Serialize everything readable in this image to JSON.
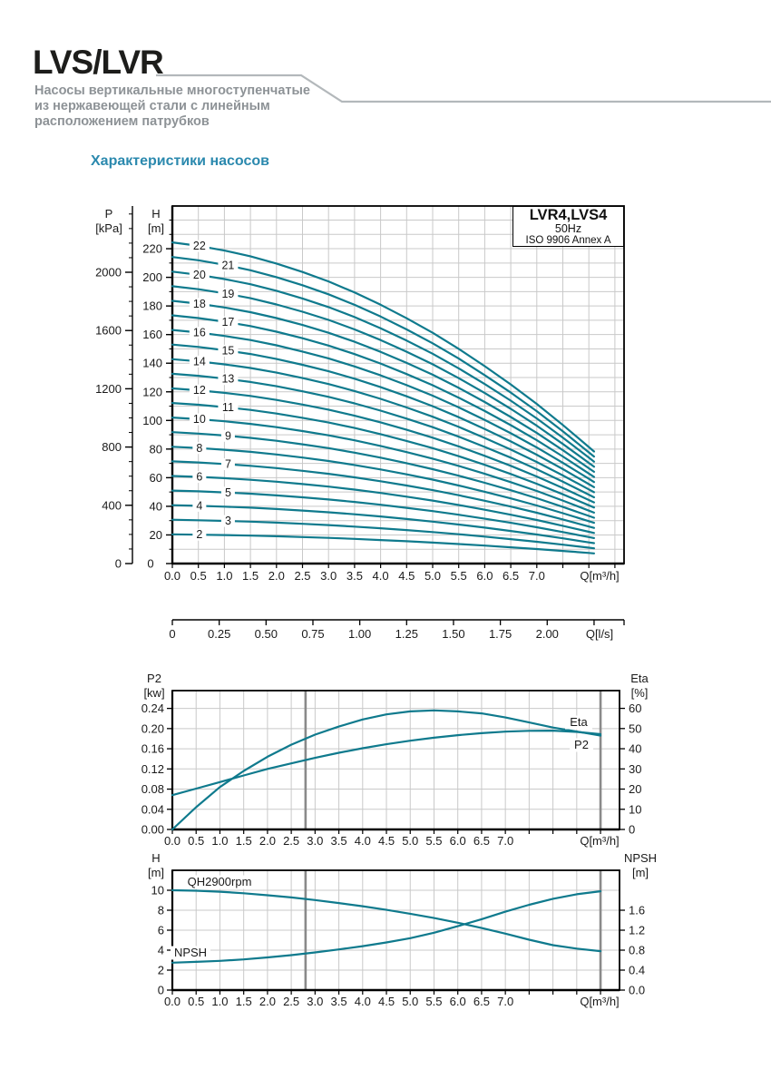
{
  "header": {
    "logo": "LVS/LVR",
    "subtitle_lines": [
      "Насосы вертикальные многоступенчатые",
      "из нержавеющей стали с линейным",
      "расположением патрубков"
    ],
    "section_title": "Характеристики насосов"
  },
  "title_box": {
    "model": "LVR4,LVS4",
    "frequency": "50Hz",
    "standard": "ISO 9906 Annex A"
  },
  "colors": {
    "curve": "#0f7a8d",
    "heading": "#2b89ae",
    "subtitle_gray": "#8d9296",
    "logo_black": "#1d1d1b",
    "grid": "#c9c9c9",
    "grid_dark": "#8a8a8a",
    "axis": "#000000",
    "header_line": "#b3b8bb"
  },
  "chart_data": [
    {
      "id": "qh_multistage",
      "type": "line",
      "title": "LVR4,LVS4",
      "subtitle": "50Hz",
      "standard": "ISO 9906 Annex A",
      "x_axis": {
        "label": "Q[m³/h]",
        "tick_labels": [
          "0.0",
          "0.5",
          "1.0",
          "1.5",
          "2.0",
          "2.5",
          "3.0",
          "3.5",
          "4.0",
          "4.5",
          "5.0",
          "5.5",
          "6.0",
          "6.5",
          "7.0"
        ],
        "tick_step": 0.5,
        "max": 8.65
      },
      "x_axis_secondary": {
        "label": "Q[l/s]",
        "tick_labels": [
          "0",
          "0.25",
          "0.50",
          "0.75",
          "1.00",
          "1.25",
          "1.50",
          "1.75",
          "2.00"
        ],
        "tick_step": 0.25,
        "m3h_per_unit": 3.6
      },
      "y_axis_h": {
        "label_lines": [
          "H",
          "[m]"
        ],
        "ticks": [
          0,
          20,
          40,
          60,
          80,
          100,
          120,
          140,
          160,
          180,
          200,
          220
        ],
        "minor_step": 10,
        "max": 250
      },
      "y_axis_p": {
        "label_lines": [
          "P",
          "[kPa]"
        ],
        "ticks": [
          0,
          400,
          800,
          1200,
          1600,
          2000
        ],
        "minor_step": 100,
        "max": 2400,
        "kpa_per_m": 9.81
      },
      "stages": [
        2,
        3,
        4,
        5,
        6,
        7,
        8,
        9,
        10,
        11,
        12,
        13,
        14,
        15,
        16,
        17,
        18,
        19,
        20,
        21,
        22
      ],
      "per_stage_head": {
        "q": [
          0,
          0.5,
          1,
          1.5,
          2,
          2.5,
          3,
          3.5,
          4,
          4.5,
          5,
          5.5,
          6,
          6.5,
          7,
          7.5,
          8,
          8.1
        ],
        "h_m": [
          10.2,
          10.09,
          9.94,
          9.76,
          9.53,
          9.26,
          8.96,
          8.61,
          8.22,
          7.79,
          7.33,
          6.82,
          6.27,
          5.69,
          5.07,
          4.4,
          3.7,
          3.56
        ]
      },
      "stage_label_q": {
        "even": 0.52,
        "odd": 1.07
      }
    },
    {
      "id": "power_efficiency",
      "type": "line",
      "x_axis": {
        "label": "Q[m³/h]",
        "tick_labels": [
          "0.0",
          "0.5",
          "1.0",
          "1.5",
          "2.0",
          "2.5",
          "3.0",
          "3.5",
          "4.0",
          "4.5",
          "5.0",
          "5.5",
          "6.0",
          "6.5",
          "7.0"
        ],
        "tick_step": 0.5,
        "max": 9.4
      },
      "y_axis_left": {
        "label_lines": [
          "P2",
          "[kw]"
        ],
        "ticks": [
          "0.00",
          "0.04",
          "0.08",
          "0.12",
          "0.16",
          "0.20",
          "0.24"
        ],
        "max": 0.2753
      },
      "y_axis_right": {
        "label_lines": [
          "Eta",
          "[%]"
        ],
        "ticks": [
          "0",
          "10",
          "20",
          "30",
          "40",
          "50",
          "60"
        ],
        "max": 68.8
      },
      "reference_lines_q": [
        2.8,
        9.0
      ],
      "series": [
        {
          "name": "Eta",
          "axis": "right",
          "q": [
            0,
            0.5,
            1,
            1.5,
            2,
            2.5,
            3,
            3.5,
            4,
            4.5,
            5,
            5.5,
            6,
            6.5,
            7,
            7.5,
            8,
            8.5,
            9.0
          ],
          "values": [
            0,
            11,
            21,
            29,
            36,
            42,
            47,
            51,
            54.5,
            57,
            58.5,
            59,
            58.5,
            57.5,
            55.5,
            53,
            50.5,
            48.5,
            46.5
          ]
        },
        {
          "name": "P2",
          "axis": "left",
          "q": [
            0,
            0.5,
            1,
            1.5,
            2,
            2.5,
            3,
            3.5,
            4,
            4.5,
            5,
            5.5,
            6,
            6.5,
            7,
            7.5,
            8,
            8.5,
            9.0
          ],
          "values": [
            0.068,
            0.081,
            0.094,
            0.107,
            0.12,
            0.131,
            0.142,
            0.152,
            0.161,
            0.169,
            0.176,
            0.182,
            0.187,
            0.191,
            0.194,
            0.1955,
            0.196,
            0.1935,
            0.189
          ]
        }
      ]
    },
    {
      "id": "qh_npsh",
      "type": "line",
      "x_axis": {
        "label": "Q[m³/h]",
        "tick_labels": [
          "0.0",
          "0.5",
          "1.0",
          "1.5",
          "2.0",
          "2.5",
          "3.0",
          "3.5",
          "4.0",
          "4.5",
          "5.0",
          "5.5",
          "6.0",
          "6.5",
          "7.0"
        ],
        "tick_step": 0.5,
        "max": 9.4
      },
      "y_axis_left": {
        "label_lines": [
          "H",
          "[m]"
        ],
        "ticks": [
          "0",
          "2",
          "4",
          "6",
          "8",
          "10"
        ],
        "max": 12
      },
      "y_axis_right": {
        "label_lines": [
          "NPSH",
          "[m]"
        ],
        "ticks": [
          "0.0",
          "0.4",
          "0.8",
          "1.2",
          "1.6"
        ],
        "max": 2.4
      },
      "reference_lines_q": [
        2.8,
        9.0
      ],
      "series": [
        {
          "name": "QH2900rpm",
          "axis": "left",
          "q": [
            0,
            0.5,
            1,
            1.5,
            2,
            2.5,
            3,
            3.5,
            4,
            4.5,
            5,
            5.5,
            6,
            6.5,
            7,
            7.5,
            8,
            8.5,
            9.0
          ],
          "values": [
            10.0,
            9.95,
            9.85,
            9.7,
            9.5,
            9.28,
            9.02,
            8.72,
            8.4,
            8.04,
            7.65,
            7.22,
            6.75,
            6.22,
            5.65,
            5.05,
            4.5,
            4.15,
            3.9
          ]
        },
        {
          "name": "NPSH",
          "axis": "right",
          "q": [
            0,
            0.5,
            1,
            1.5,
            2,
            2.5,
            3,
            3.5,
            4,
            4.5,
            5,
            5.5,
            6,
            6.5,
            7,
            7.5,
            8,
            8.5,
            9.0
          ],
          "values": [
            0.55,
            0.565,
            0.585,
            0.615,
            0.655,
            0.7,
            0.755,
            0.815,
            0.88,
            0.955,
            1.04,
            1.15,
            1.28,
            1.42,
            1.57,
            1.71,
            1.83,
            1.92,
            1.98
          ]
        }
      ]
    }
  ]
}
